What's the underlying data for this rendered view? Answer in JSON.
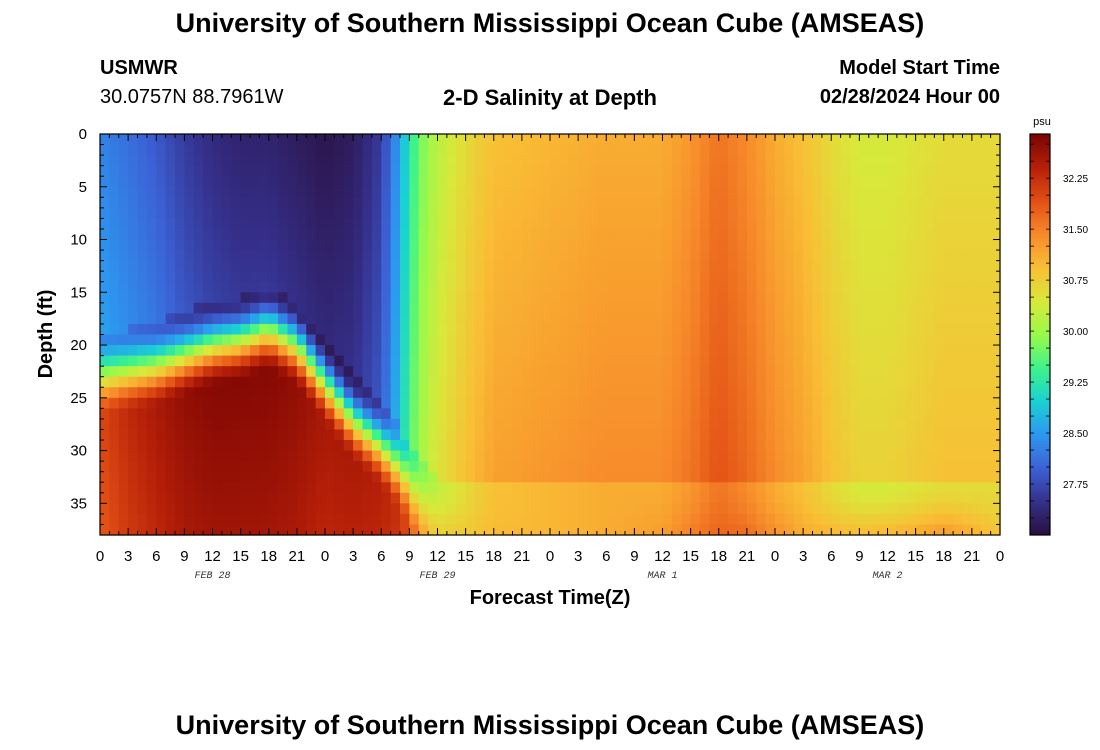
{
  "page": {
    "title_top": "University of Southern Mississippi Ocean Cube (AMSEAS)",
    "title_bottom": "University of Southern Mississippi Ocean Cube (AMSEAS)",
    "station": "USMWR",
    "location": "30.0757N  88.7961W",
    "plot_title": "2-D Salinity at Depth",
    "model_start_label": "Model Start Time",
    "model_start_value": "02/28/2024 Hour 00"
  },
  "chart_data": {
    "type": "heatmap",
    "title": "2-D Salinity at Depth",
    "xlabel": "Forecast Time(Z)",
    "ylabel": "Depth (ft)",
    "x_range_hours": [
      0,
      96
    ],
    "x_tick_labels": [
      "0",
      "3",
      "6",
      "9",
      "12",
      "15",
      "18",
      "21",
      "0",
      "3",
      "6",
      "9",
      "12",
      "15",
      "18",
      "21",
      "0",
      "3",
      "6",
      "9",
      "12",
      "15",
      "18",
      "21",
      "0",
      "3",
      "6",
      "9",
      "12",
      "15",
      "18",
      "21",
      "0"
    ],
    "date_labels": [
      {
        "label": "FEB 28",
        "hour": 12
      },
      {
        "label": "FEB 29",
        "hour": 36
      },
      {
        "label": "MAR 1",
        "hour": 60
      },
      {
        "label": "MAR 2",
        "hour": 84
      }
    ],
    "y_range_ft": [
      0,
      38
    ],
    "y_ticks": [
      0,
      5,
      10,
      15,
      20,
      25,
      30,
      35
    ],
    "colorbar": {
      "unit": "psu",
      "range": [
        27.0,
        32.9
      ],
      "tick_labels": [
        "32.25",
        "31.50",
        "30.75",
        "30.00",
        "29.25",
        "28.50",
        "27.75"
      ],
      "tick_values": [
        32.25,
        31.5,
        30.75,
        30.0,
        29.25,
        28.5,
        27.75
      ],
      "colors": [
        "#2a0f3d",
        "#35308c",
        "#3b62d6",
        "#2d97f0",
        "#1ad1d3",
        "#3ff38a",
        "#9af94a",
        "#d9e83a",
        "#f9be35",
        "#f7892a",
        "#e24f14",
        "#b51f08",
        "#7a0403"
      ]
    },
    "profile_columns": [
      "hour",
      "surface_psu",
      "halocline_depth_ft",
      "bottom_psu"
    ],
    "profiles": [
      [
        0,
        28.3,
        24.0,
        32.0
      ],
      [
        3,
        28.1,
        23.5,
        32.3
      ],
      [
        6,
        27.9,
        23.0,
        32.5
      ],
      [
        9,
        27.6,
        22.0,
        32.7
      ],
      [
        12,
        27.4,
        21.0,
        32.8
      ],
      [
        15,
        27.3,
        20.5,
        32.8
      ],
      [
        18,
        27.3,
        19.5,
        32.8
      ],
      [
        21,
        27.2,
        21.0,
        32.7
      ],
      [
        24,
        27.1,
        24.5,
        32.5
      ],
      [
        27,
        27.2,
        28.0,
        32.5
      ],
      [
        30,
        27.6,
        30.5,
        32.4
      ],
      [
        32,
        28.6,
        33.0,
        32.2
      ],
      [
        33,
        29.2,
        34.5,
        31.9
      ],
      [
        34,
        29.7,
        36.0,
        31.4
      ],
      [
        36,
        30.2,
        37.5,
        30.9
      ],
      [
        39,
        30.6,
        38.0,
        30.9
      ],
      [
        42,
        30.9,
        38.0,
        31.0
      ],
      [
        48,
        31.0,
        38.0,
        31.0
      ],
      [
        54,
        31.1,
        38.0,
        31.1
      ],
      [
        60,
        31.1,
        38.0,
        31.3
      ],
      [
        63,
        31.3,
        38.0,
        31.6
      ],
      [
        66,
        31.6,
        38.0,
        31.8
      ],
      [
        69,
        31.4,
        38.0,
        31.8
      ],
      [
        72,
        31.1,
        38.0,
        31.5
      ],
      [
        75,
        30.9,
        38.0,
        31.2
      ],
      [
        78,
        30.6,
        38.0,
        31.2
      ],
      [
        81,
        30.4,
        38.0,
        31.2
      ],
      [
        84,
        30.4,
        38.0,
        31.3
      ],
      [
        87,
        30.5,
        38.0,
        31.4
      ],
      [
        90,
        30.6,
        38.0,
        31.6
      ],
      [
        93,
        30.6,
        38.0,
        31.3
      ],
      [
        96,
        30.6,
        38.0,
        31.0
      ]
    ]
  }
}
